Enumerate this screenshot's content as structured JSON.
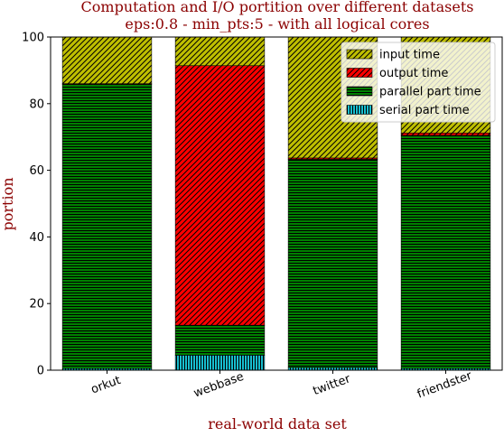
{
  "chart_data": {
    "type": "bar",
    "stacked": true,
    "title": "Computation and I/O portition over different datasets",
    "subtitle": "eps:0.8 - min_pts:5 - with all logical cores",
    "xlabel": "real-world data set",
    "ylabel": "portion",
    "ylim": [
      0,
      100
    ],
    "yticks": [
      0,
      20,
      40,
      60,
      80,
      100
    ],
    "categories": [
      "orkut",
      "webbase",
      "twitter",
      "friendster"
    ],
    "series": [
      {
        "name": "serial part time",
        "values": [
          0.5,
          4.5,
          0.8,
          0.5
        ],
        "color": "#17becf",
        "hatch": "vertical"
      },
      {
        "name": "parallel part time",
        "values": [
          85.3,
          9.0,
          62.5,
          70.0
        ],
        "color": "#008000",
        "hatch": "horizontal"
      },
      {
        "name": "output time",
        "values": [
          0.2,
          77.9,
          0.4,
          0.7
        ],
        "color": "#ff0000",
        "hatch": "diagonal"
      },
      {
        "name": "input time",
        "values": [
          14.0,
          8.6,
          36.3,
          28.8
        ],
        "color": "#bfbf00",
        "hatch": "diagonal"
      }
    ],
    "legend_order": [
      "input time",
      "output time",
      "parallel part time",
      "serial part time"
    ],
    "legend_position": "top-right",
    "grid": false
  }
}
